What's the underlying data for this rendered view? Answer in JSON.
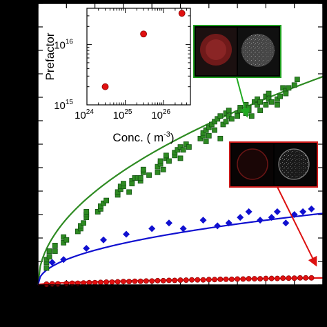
{
  "colors": {
    "background": "#000000",
    "plot_bg": "#ffffff",
    "green": "#2e8b22",
    "green_edge": "#145214",
    "blue": "#1010d0",
    "red": "#e01010",
    "red_edge": "#8b0000",
    "arrow_green": "#22aa22",
    "arrow_red": "#dd1111"
  },
  "chart_data": [
    {
      "type": "scatter",
      "role": "main-plot",
      "grid": false,
      "x_range": [
        0,
        100
      ],
      "y_range": [
        0,
        100
      ],
      "tick_labels_visible": false,
      "series": [
        {
          "color": "green",
          "marker": "square",
          "x": [
            3,
            3,
            3,
            4,
            4,
            6,
            6,
            9,
            9,
            10,
            14,
            15,
            15,
            16,
            17,
            17,
            17,
            21,
            22,
            22,
            23,
            24,
            28,
            28,
            29,
            29,
            30,
            30,
            32,
            33,
            33,
            34,
            35,
            36,
            36,
            37,
            37,
            39,
            42,
            42,
            43,
            43,
            44,
            45,
            45,
            46,
            48,
            48,
            49,
            50,
            50,
            51,
            52,
            53,
            57,
            58,
            58,
            59,
            59,
            60,
            60,
            61,
            62,
            62,
            63,
            64,
            64,
            65,
            66,
            66,
            67,
            67,
            68,
            70,
            70,
            71,
            71,
            73,
            73,
            74,
            74,
            75,
            76,
            77,
            77,
            78,
            78,
            80,
            80,
            81,
            81,
            82,
            84,
            84,
            85,
            86,
            87,
            87,
            88,
            90,
            91
          ],
          "y": [
            6,
            8,
            9,
            10,
            12,
            12,
            14,
            15,
            17,
            16,
            19,
            20,
            21,
            22,
            24,
            25,
            26,
            26,
            27,
            28,
            29,
            30,
            32,
            33,
            34,
            35,
            35,
            36,
            33,
            37,
            36,
            38,
            38,
            37,
            38,
            40,
            41,
            39,
            40,
            42,
            43,
            44,
            41,
            45,
            46,
            44,
            46,
            47,
            48,
            45,
            49,
            48,
            50,
            49,
            52,
            53,
            54,
            55,
            51,
            56,
            53,
            57,
            55,
            58,
            59,
            52,
            60,
            57,
            58,
            61,
            62,
            60,
            59,
            61,
            60,
            63,
            62,
            61,
            64,
            63,
            62,
            60,
            65,
            64,
            66,
            62,
            65,
            67,
            64,
            68,
            66,
            65,
            64,
            66,
            67,
            70,
            69,
            68,
            70,
            71,
            73
          ]
        },
        {
          "color": "blue",
          "marker": "diamond",
          "x": [
            5,
            9,
            17,
            23,
            31,
            40,
            46,
            51,
            58,
            63,
            67,
            71,
            74,
            78,
            82,
            84,
            87,
            90,
            93,
            96
          ],
          "y": [
            8,
            9,
            13,
            16,
            18,
            20,
            22,
            20,
            23,
            21,
            22,
            24,
            26,
            23,
            24,
            26,
            22,
            25,
            26,
            27
          ]
        },
        {
          "color": "red",
          "marker": "circle",
          "x": [
            3,
            5,
            7,
            10,
            12,
            14,
            16,
            18,
            20,
            22,
            24,
            26,
            28,
            30,
            32,
            34,
            36,
            38,
            40,
            42,
            44,
            46,
            48,
            50,
            52,
            54,
            56,
            58,
            60,
            62,
            64,
            66,
            68,
            70,
            72,
            74,
            76,
            78,
            80,
            82,
            84,
            86,
            88,
            90,
            92,
            94,
            96
          ],
          "y": [
            0.3,
            0.4,
            0.4,
            0.5,
            0.6,
            0.6,
            0.7,
            0.8,
            0.8,
            0.9,
            1.0,
            1.0,
            1.1,
            1.2,
            1.2,
            1.3,
            1.3,
            1.4,
            1.4,
            1.5,
            1.5,
            1.6,
            1.6,
            1.7,
            1.7,
            1.8,
            1.8,
            1.8,
            1.9,
            1.9,
            2.0,
            2.0,
            2.0,
            2.1,
            2.1,
            2.2,
            2.2,
            2.2,
            2.3,
            2.3,
            2.3,
            2.4,
            2.4,
            2.4,
            2.5,
            2.5,
            2.5
          ]
        }
      ],
      "fits": [
        {
          "color": "green",
          "model": "power",
          "a": 7.4,
          "b": 0.5
        },
        {
          "color": "blue",
          "model": "power",
          "a": 3.2,
          "b": 0.45
        },
        {
          "color": "red",
          "model": "power",
          "a": 0.25,
          "b": 0.5
        }
      ]
    },
    {
      "type": "scatter",
      "role": "inset",
      "x_scale": "log",
      "y_scale": "log",
      "xlabel_prefix": "Conc. ( m",
      "xlabel_sup": "-3",
      "xlabel_suffix": ")",
      "ylabel": "Prefactor",
      "xlim": [
        1e+24,
        5e+26
      ],
      "ylim": [
        1000000000000000.0,
        4e+16
      ],
      "x_ticks": [
        {
          "value": 1e+24,
          "base": "10",
          "exp": "24"
        },
        {
          "value": 1e+25,
          "base": "10",
          "exp": "25"
        },
        {
          "value": 1e+26,
          "base": "10",
          "exp": "26"
        }
      ],
      "y_ticks": [
        {
          "value": 1000000000000000.0,
          "base": "10",
          "exp": "15"
        },
        {
          "value": 1e+16,
          "base": "10",
          "exp": "16"
        }
      ],
      "points": [
        {
          "x": 3e+24,
          "y": 2000000000000000.0
        },
        {
          "x": 3e+25,
          "y": 1.5e+16
        },
        {
          "x": 3e+26,
          "y": 3.3e+16
        }
      ]
    }
  ]
}
